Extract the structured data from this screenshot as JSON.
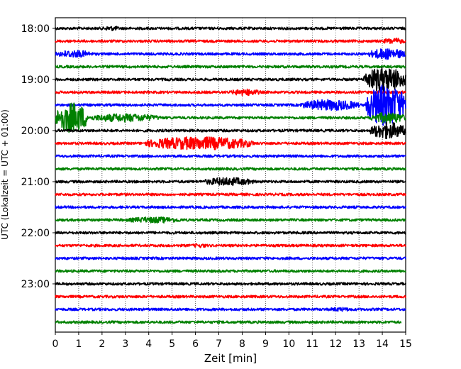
{
  "chart_data": {
    "type": "line",
    "xlabel": "Zeit  [min]",
    "ylabel": "UTC (Lokalzeit = UTC + 01:00)",
    "xlim": [
      0,
      15
    ],
    "x_ticks": [
      0,
      1,
      2,
      3,
      4,
      5,
      6,
      7,
      8,
      9,
      10,
      11,
      12,
      13,
      14,
      15
    ],
    "y_ticks": [
      {
        "label": "18:00",
        "trace": 0
      },
      {
        "label": "19:00",
        "trace": 4
      },
      {
        "label": "20:00",
        "trace": 8
      },
      {
        "label": "21:00",
        "trace": 12
      },
      {
        "label": "22:00",
        "trace": 16
      },
      {
        "label": "23:00",
        "trace": 20
      }
    ],
    "trace_interval_minutes": 15,
    "trace_count": 24,
    "color_cycle": [
      "#000000",
      "#ff0000",
      "#0000ff",
      "#008000"
    ],
    "grid": {
      "x": "dotted-vertical",
      "y": false
    },
    "last_trace_end_minute": 14.8,
    "events": [
      {
        "trace": 0,
        "start": 2.0,
        "end": 2.8,
        "amp": 0.35
      },
      {
        "trace": 1,
        "start": 14.0,
        "end": 15.0,
        "amp": 0.45
      },
      {
        "trace": 2,
        "start": 0.0,
        "end": 1.6,
        "amp": 0.55
      },
      {
        "trace": 2,
        "start": 13.4,
        "end": 15.0,
        "amp": 0.8
      },
      {
        "trace": 4,
        "start": 13.2,
        "end": 15.0,
        "amp": 1.8
      },
      {
        "trace": 5,
        "start": 7.5,
        "end": 8.8,
        "amp": 0.5
      },
      {
        "trace": 6,
        "start": 10.5,
        "end": 13.0,
        "amp": 0.8
      },
      {
        "trace": 6,
        "start": 13.3,
        "end": 15.0,
        "amp": 3.0
      },
      {
        "trace": 7,
        "start": 0.0,
        "end": 1.4,
        "amp": 2.2
      },
      {
        "trace": 7,
        "start": 1.4,
        "end": 4.5,
        "amp": 0.6
      },
      {
        "trace": 7,
        "start": 13.5,
        "end": 15.0,
        "amp": 0.8
      },
      {
        "trace": 8,
        "start": 13.5,
        "end": 15.0,
        "amp": 1.2
      },
      {
        "trace": 9,
        "start": 3.8,
        "end": 8.5,
        "amp": 0.95
      },
      {
        "trace": 12,
        "start": 6.3,
        "end": 8.5,
        "amp": 0.6
      },
      {
        "trace": 15,
        "start": 3.0,
        "end": 5.5,
        "amp": 0.45
      },
      {
        "trace": 17,
        "start": 5.8,
        "end": 6.6,
        "amp": 0.3
      },
      {
        "trace": 22,
        "start": 11.6,
        "end": 12.8,
        "amp": 0.3
      }
    ]
  }
}
